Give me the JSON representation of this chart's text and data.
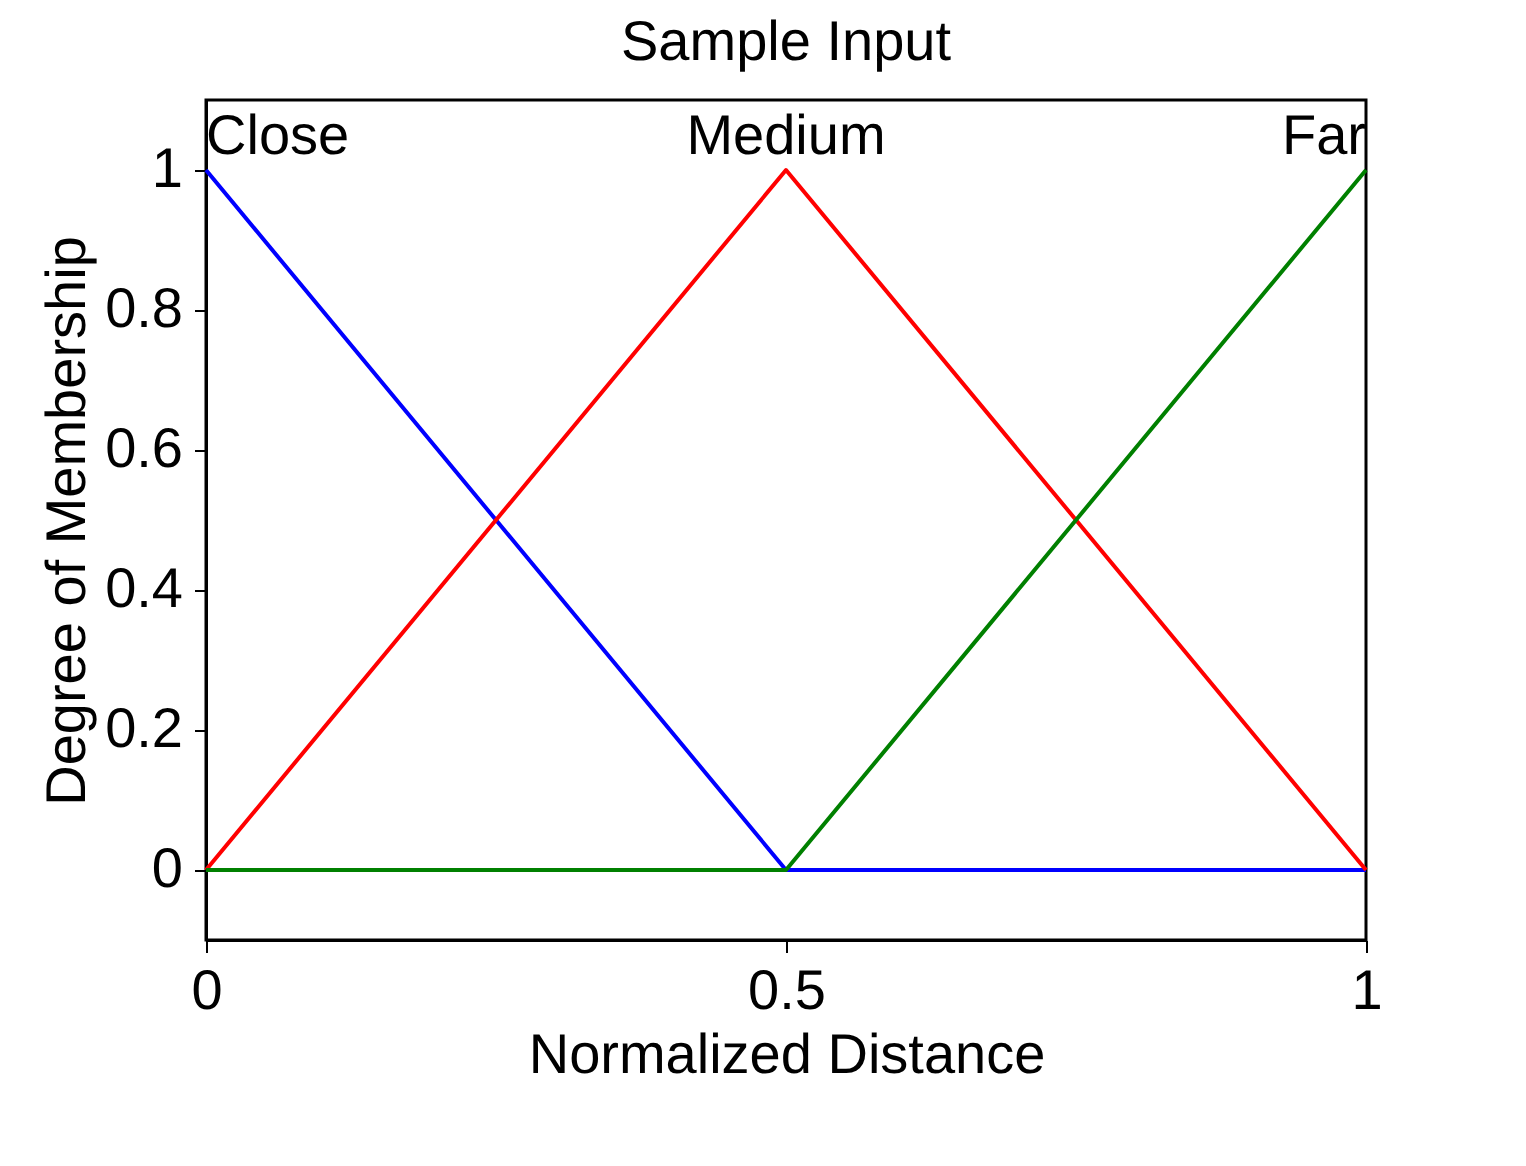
{
  "chart_data": {
    "type": "line",
    "title": "Sample Input",
    "xlabel": "Normalized Distance",
    "ylabel": "Degree of Membership",
    "x": [
      0,
      0.5,
      1
    ],
    "series": [
      {
        "name": "Close",
        "color": "#0000ff",
        "values": [
          1,
          0,
          0
        ]
      },
      {
        "name": "Medium",
        "color": "#ff0000",
        "values": [
          0,
          1,
          0
        ]
      },
      {
        "name": "Far",
        "color": "#008000",
        "values": [
          0,
          0,
          1
        ]
      }
    ],
    "xlim": [
      0,
      1
    ],
    "xticks": [
      0,
      0.5,
      1
    ],
    "ylim": [
      -0.1,
      1.1
    ],
    "yticks": [
      0,
      0.2,
      0.4,
      0.6,
      0.8,
      1
    ],
    "grid": false,
    "marker": "none",
    "line_style": "solid"
  }
}
